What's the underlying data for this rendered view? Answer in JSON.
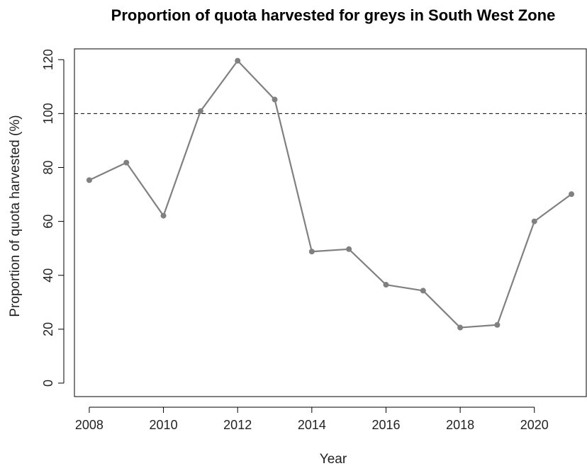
{
  "chart_data": {
    "type": "line",
    "title": "Proportion of quota harvested for greys in South West Zone",
    "xlabel": "Year",
    "ylabel": "Proportion of quota harvested (%)",
    "x": [
      2008,
      2009,
      2010,
      2011,
      2012,
      2013,
      2014,
      2015,
      2016,
      2017,
      2018,
      2019,
      2020,
      2021
    ],
    "series": [
      {
        "values": [
          75.3,
          81.8,
          62.1,
          100.9,
          119.6,
          105.2,
          48.8,
          49.7,
          36.5,
          34.3,
          20.6,
          21.6,
          60.0,
          70.1
        ]
      }
    ],
    "xlim": [
      2007.6,
      2021.4
    ],
    "ylim": [
      -5,
      124
    ],
    "xticks": [
      2008,
      2010,
      2012,
      2014,
      2016,
      2018,
      2020
    ],
    "yticks": [
      0,
      20,
      40,
      60,
      80,
      100,
      120
    ],
    "reference_line": {
      "y": 100,
      "style": "dashed",
      "color": "#000000"
    },
    "line_color": "#808080",
    "grid": false
  }
}
